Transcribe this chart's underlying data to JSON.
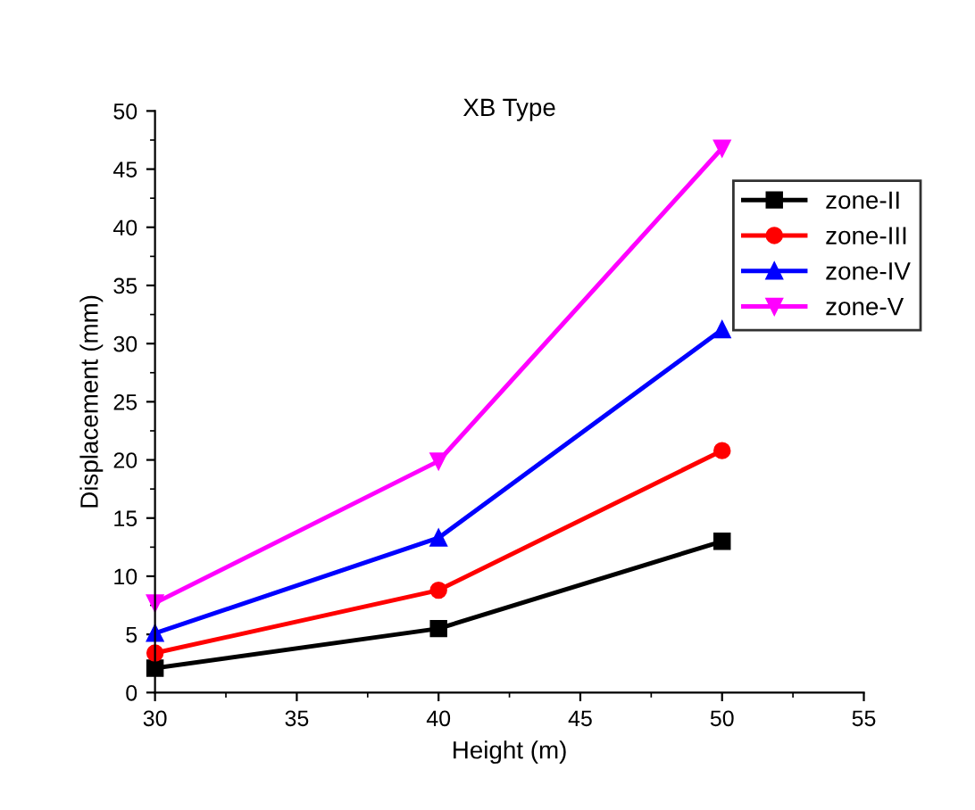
{
  "chart_data": {
    "type": "line",
    "title": "XB Type",
    "xlabel": "Height (m)",
    "ylabel": "Displacement (mm)",
    "x": [
      30,
      40,
      50
    ],
    "series": [
      {
        "name": "zone-II",
        "color": "#000000",
        "marker": "square",
        "values": [
          2.1,
          5.5,
          13.0
        ]
      },
      {
        "name": "zone-III",
        "color": "#ff0000",
        "marker": "circle",
        "values": [
          3.4,
          8.8,
          20.8
        ]
      },
      {
        "name": "zone-IV",
        "color": "#0000ff",
        "marker": "triangle",
        "values": [
          5.1,
          13.3,
          31.2
        ]
      },
      {
        "name": "zone-V",
        "color": "#ff00ff",
        "marker": "triangle_down",
        "values": [
          7.7,
          19.9,
          46.8
        ]
      }
    ],
    "xlim": [
      30,
      55
    ],
    "xticks": [
      30,
      35,
      40,
      45,
      50,
      55
    ],
    "ylim": [
      0,
      50
    ],
    "yticks": [
      0,
      5,
      10,
      15,
      20,
      25,
      30,
      35,
      40,
      45,
      50
    ],
    "grid": false,
    "legend": "top right",
    "line_style": "solid"
  }
}
